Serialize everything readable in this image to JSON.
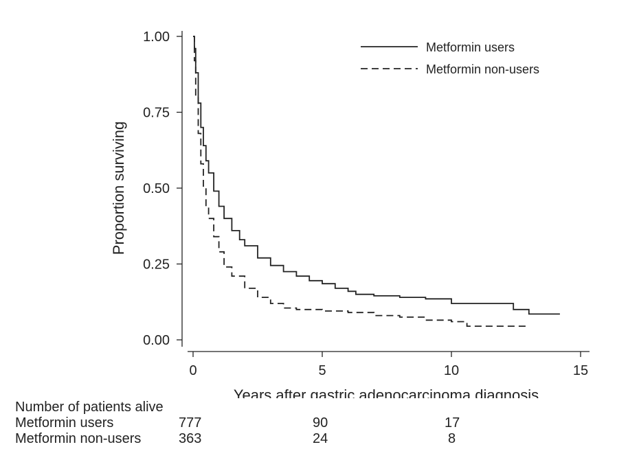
{
  "chart_data": {
    "type": "line",
    "title": "",
    "xlabel": "Years after gastric adenocarcinoma diagnosis",
    "ylabel": "Proportion surviving",
    "xlim": [
      0,
      15
    ],
    "ylim": [
      0,
      1
    ],
    "xticks": [
      0,
      5,
      10,
      15
    ],
    "xtick_labels": [
      "0",
      "5",
      "10",
      "15"
    ],
    "yticks": [
      0,
      0.25,
      0.5,
      0.75,
      1
    ],
    "ytick_labels": [
      "0.00",
      "0.25",
      "0.50",
      "0.75",
      "1.00"
    ],
    "grid": false,
    "legend_position": "top-right",
    "series": [
      {
        "name": "Metformin users",
        "style": "solid",
        "x": [
          0,
          0.05,
          0.1,
          0.2,
          0.3,
          0.4,
          0.5,
          0.6,
          0.8,
          1.0,
          1.2,
          1.5,
          1.8,
          2.0,
          2.5,
          3.0,
          3.5,
          4.0,
          4.5,
          5.0,
          5.5,
          6.0,
          6.3,
          7.0,
          8.0,
          9.0,
          10.0,
          11.0,
          12.0,
          12.4,
          12.8,
          13.0,
          14.2
        ],
        "y": [
          1.0,
          0.96,
          0.88,
          0.78,
          0.7,
          0.64,
          0.59,
          0.55,
          0.49,
          0.44,
          0.4,
          0.36,
          0.33,
          0.31,
          0.27,
          0.245,
          0.225,
          0.21,
          0.195,
          0.185,
          0.17,
          0.16,
          0.15,
          0.145,
          0.14,
          0.135,
          0.12,
          0.12,
          0.12,
          0.1,
          0.1,
          0.085,
          0.085
        ]
      },
      {
        "name": "Metformin non-users",
        "style": "dashed",
        "x": [
          0,
          0.05,
          0.1,
          0.2,
          0.3,
          0.4,
          0.5,
          0.6,
          0.8,
          1.0,
          1.2,
          1.5,
          2.0,
          2.5,
          3.0,
          3.5,
          4.0,
          5.0,
          6.0,
          7.0,
          8.0,
          9.0,
          10.0,
          10.6,
          11.0,
          12.0,
          13.0
        ],
        "y": [
          1.0,
          0.92,
          0.8,
          0.68,
          0.58,
          0.5,
          0.44,
          0.4,
          0.34,
          0.29,
          0.24,
          0.21,
          0.17,
          0.14,
          0.12,
          0.105,
          0.1,
          0.095,
          0.09,
          0.08,
          0.075,
          0.065,
          0.06,
          0.045,
          0.045,
          0.045,
          0.045
        ]
      }
    ]
  },
  "risk_table": {
    "header": "Number of patients alive",
    "rows": [
      {
        "label": "Metformin users",
        "values": [
          "777",
          "90",
          "17"
        ]
      },
      {
        "label": "Metformin non-users",
        "values": [
          "363",
          "24",
          "8"
        ]
      }
    ]
  }
}
